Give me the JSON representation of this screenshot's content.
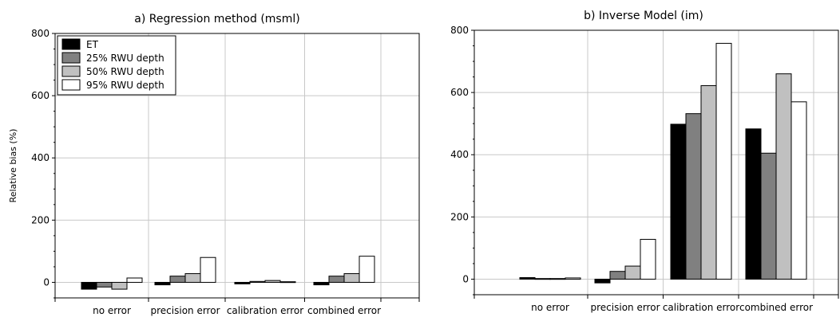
{
  "chart_data": [
    {
      "type": "bar",
      "title": "a) Regression method (msml)",
      "ylabel": "Relative bias (%)",
      "xlabel": "",
      "ylim": [
        -50,
        800
      ],
      "yticks": [
        0,
        200,
        400,
        600,
        800
      ],
      "grid": true,
      "legend_position": "top-left",
      "categories": [
        "no error",
        "precision error",
        "calibration error",
        "combined error"
      ],
      "series": [
        {
          "name": "ET",
          "color": "#000000",
          "values": [
            -22,
            -8,
            -5,
            -8
          ]
        },
        {
          "name": "25% RWU depth",
          "color": "#808080",
          "values": [
            -15,
            20,
            3,
            20
          ]
        },
        {
          "name": "50% RWU depth",
          "color": "#c0c0c0",
          "values": [
            -22,
            28,
            6,
            28
          ]
        },
        {
          "name": "95% RWU depth",
          "color": "#ffffff",
          "values": [
            14,
            80,
            2,
            84
          ]
        }
      ]
    },
    {
      "type": "bar",
      "title": "b) Inverse Model (im)",
      "ylabel": "",
      "xlabel": "",
      "ylim": [
        -50,
        800
      ],
      "yticks": [
        0,
        200,
        400,
        600,
        800
      ],
      "grid": true,
      "legend_position": "none",
      "categories": [
        "no error",
        "precision error",
        "calibration error",
        "combined error"
      ],
      "series": [
        {
          "name": "ET",
          "color": "#000000",
          "values": [
            5,
            -12,
            498,
            483
          ]
        },
        {
          "name": "25% RWU depth",
          "color": "#808080",
          "values": [
            2,
            25,
            532,
            405
          ]
        },
        {
          "name": "50% RWU depth",
          "color": "#c0c0c0",
          "values": [
            2,
            42,
            622,
            660
          ]
        },
        {
          "name": "95% RWU depth",
          "color": "#ffffff",
          "values": [
            4,
            128,
            758,
            570
          ]
        }
      ]
    }
  ]
}
